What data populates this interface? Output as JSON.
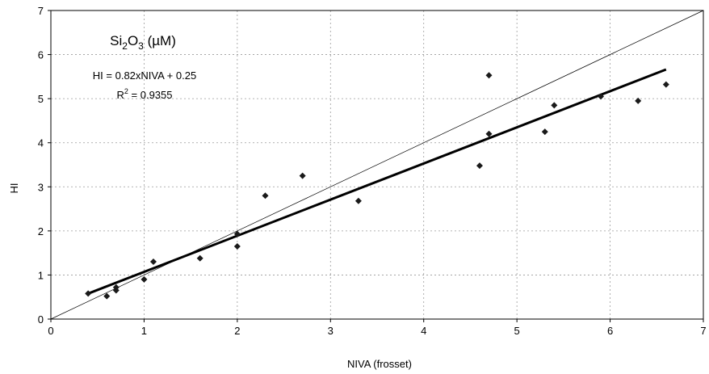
{
  "chart_data": {
    "type": "scatter",
    "title": "",
    "xlabel": "NIVA (frosset)",
    "ylabel": "HI",
    "xlim": [
      0,
      7
    ],
    "ylim": [
      0,
      7
    ],
    "x_ticks": [
      "0",
      "1",
      "2",
      "3",
      "4",
      "5",
      "6",
      "7"
    ],
    "y_ticks": [
      "0",
      "1",
      "2",
      "3",
      "4",
      "5",
      "6",
      "7"
    ],
    "grid": true,
    "legend": "none",
    "annotation": {
      "compound_base": "Si",
      "compound_sub1": "2",
      "compound_mid": "O",
      "compound_sub2": "3",
      "compound_unit": " (µM)",
      "equation": "HI = 0.82xNIVA + 0.25",
      "r2_prefix": "R",
      "r2_sup": "2",
      "r2_rest": " = 0.9355"
    },
    "series": [
      {
        "marker": "diamond",
        "color": "#1a1a1a",
        "points": [
          [
            0.4,
            0.58
          ],
          [
            0.6,
            0.52
          ],
          [
            0.7,
            0.65
          ],
          [
            0.7,
            0.72
          ],
          [
            1.0,
            0.9
          ],
          [
            1.1,
            1.3
          ],
          [
            1.6,
            1.38
          ],
          [
            2.0,
            1.93
          ],
          [
            2.0,
            1.65
          ],
          [
            2.3,
            2.8
          ],
          [
            2.7,
            3.25
          ],
          [
            3.3,
            2.68
          ],
          [
            4.6,
            3.48
          ],
          [
            4.7,
            5.53
          ],
          [
            4.7,
            4.2
          ],
          [
            5.3,
            4.25
          ],
          [
            5.4,
            4.85
          ],
          [
            5.9,
            5.05
          ],
          [
            6.3,
            4.95
          ],
          [
            6.6,
            5.32
          ]
        ]
      }
    ],
    "regression_line": {
      "slope": 0.82,
      "intercept": 0.25,
      "x_range": [
        0.4,
        6.6
      ],
      "color": "#000000"
    },
    "identity_line": {
      "slope": 1,
      "intercept": 0,
      "x_range": [
        0,
        7
      ],
      "color": "#000000"
    }
  }
}
